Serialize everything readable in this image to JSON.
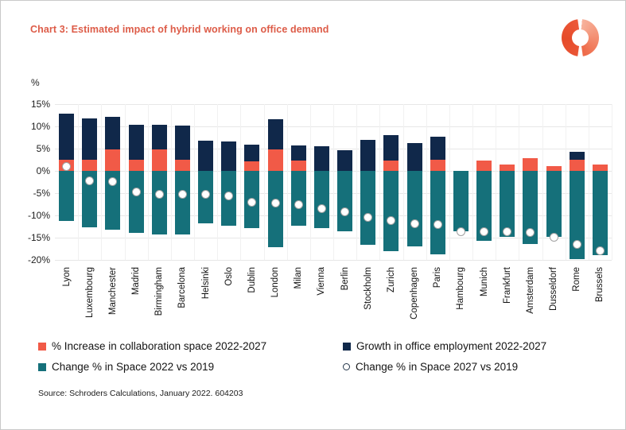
{
  "header": {
    "title": "Chart 3: Estimated impact of hybrid working on office demand",
    "logo": "schroders-ring-logo"
  },
  "colors": {
    "title": "#dd5c48",
    "collaboration": "#f15a47",
    "employment": "#10284a",
    "space2022": "#15707a",
    "dot_fill": "#ffffff",
    "grid": "#e7e7e7"
  },
  "legend": [
    {
      "label": "% Increase in collaboration space 2022-2027",
      "swatch": "square-red"
    },
    {
      "label": "Growth in office employment 2022-2027",
      "swatch": "square-navy"
    },
    {
      "label": "Change % in Space 2022 vs 2019",
      "swatch": "square-teal"
    },
    {
      "label": "Change % in Space 2027 vs 2019",
      "swatch": "open-circle"
    }
  ],
  "source_note": "Source: Schroders Calculations, January 2022. 604203",
  "chart_data": {
    "type": "bar",
    "stacked": true,
    "unit_label": "%",
    "grid": true,
    "legend_position": "bottom",
    "ylim": [
      -20,
      15
    ],
    "yticks": [
      15,
      10,
      5,
      0,
      -5,
      -10,
      -15,
      -20
    ],
    "ytick_labels": [
      "15%",
      "10%",
      "5%",
      "0%",
      "-5%",
      "-10%",
      "-15%",
      "-20%"
    ],
    "categories": [
      "Lyon",
      "Luxembourg",
      "Manchester",
      "Madrid",
      "Birmingham",
      "Barcelona",
      "Helsinki",
      "Oslo",
      "Dublin",
      "London",
      "Milan",
      "Vienna",
      "Berlin",
      "Stockholm",
      "Zurich",
      "Copenhagen",
      "Paris",
      "Hambourg",
      "Munich",
      "Frankfurt",
      "Amsterdam",
      "Dusseldorf",
      "Rome",
      "Brussels"
    ],
    "series": [
      {
        "name": "% Increase in collaboration space 2022-2027",
        "type": "bar",
        "values": [
          2.5,
          2.5,
          4.9,
          2.5,
          4.9,
          2.5,
          0,
          0,
          2.2,
          4.8,
          2.4,
          0,
          0,
          0,
          2.3,
          0,
          2.5,
          0,
          2.3,
          1.4,
          2.8,
          1.0,
          2.5,
          1.5
        ]
      },
      {
        "name": "Growth in office employment 2022-2027",
        "type": "bar",
        "values": [
          10.4,
          9.3,
          7.2,
          7.8,
          5.4,
          7.6,
          6.8,
          6.6,
          3.7,
          6.8,
          3.4,
          5.6,
          4.7,
          7.0,
          5.7,
          6.2,
          5.1,
          0,
          0,
          0,
          0,
          0,
          1.7,
          0
        ]
      },
      {
        "name": "Change % in Space 2022 vs 2019",
        "type": "bar",
        "values": [
          -11.2,
          -12.6,
          -13.3,
          -14.0,
          -14.2,
          -14.3,
          -11.7,
          -12.3,
          -12.8,
          -17.1,
          -12.4,
          -12.8,
          -13.6,
          -16.6,
          -18.0,
          -17.0,
          -18.8,
          -13.5,
          -15.7,
          -14.9,
          -16.4,
          -14.8,
          -19.8,
          -18.9
        ]
      },
      {
        "name": "Change % in Space 2027 vs 2019",
        "type": "scatter",
        "values": [
          0.9,
          -2.2,
          -2.4,
          -4.8,
          -5.2,
          -5.2,
          -5.2,
          -5.7,
          -7.0,
          -7.3,
          -7.5,
          -8.5,
          -9.2,
          -10.4,
          -11.2,
          -11.8,
          -12.0,
          -13.6,
          -13.6,
          -13.7,
          -13.9,
          -14.9,
          -16.5,
          -18.0
        ]
      }
    ]
  }
}
